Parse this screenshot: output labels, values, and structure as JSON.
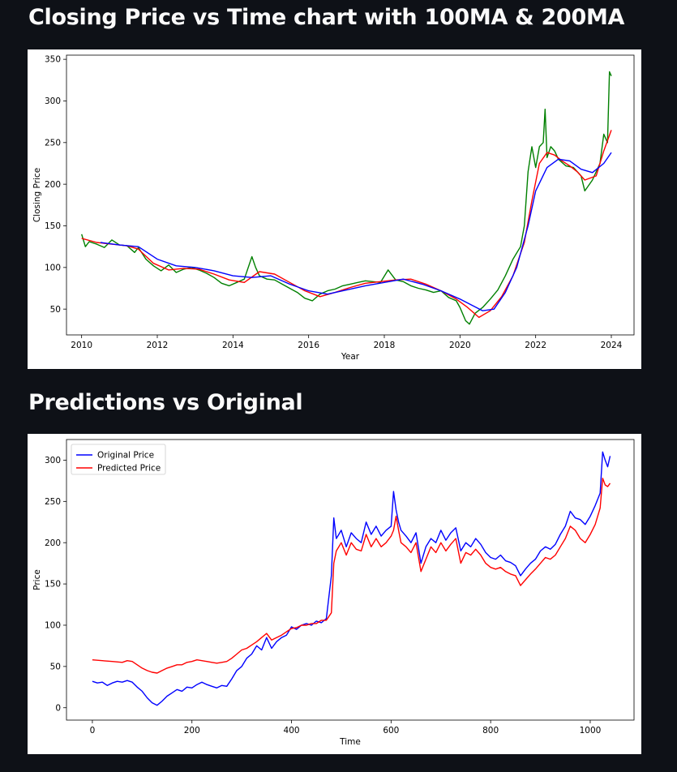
{
  "sections": [
    {
      "heading": "Closing Price vs Time chart with 100MA & 200MA"
    },
    {
      "heading": "Predictions vs Original"
    }
  ],
  "chart_data": [
    {
      "type": "line",
      "xlabel": "Year",
      "ylabel": "Closing Price",
      "xlim": [
        2009.6,
        2024.6
      ],
      "ylim": [
        19,
        355
      ],
      "xticks": [
        2010,
        2012,
        2014,
        2016,
        2018,
        2020,
        2022,
        2024
      ],
      "yticks": [
        50,
        100,
        150,
        200,
        250,
        300,
        350
      ],
      "grid": false,
      "series": [
        {
          "color": "#008000",
          "x": [
            2010.0,
            2010.1,
            2010.2,
            2010.4,
            2010.6,
            2010.8,
            2011.0,
            2011.2,
            2011.4,
            2011.5,
            2011.7,
            2011.9,
            2012.1,
            2012.3,
            2012.5,
            2012.7,
            2012.9,
            2013.1,
            2013.3,
            2013.5,
            2013.7,
            2013.9,
            2014.1,
            2014.3,
            2014.5,
            2014.6,
            2014.7,
            2014.9,
            2015.1,
            2015.3,
            2015.5,
            2015.7,
            2015.9,
            2016.1,
            2016.3,
            2016.5,
            2016.7,
            2016.9,
            2017.1,
            2017.3,
            2017.5,
            2017.7,
            2017.9,
            2018.1,
            2018.3,
            2018.5,
            2018.7,
            2018.9,
            2019.1,
            2019.3,
            2019.5,
            2019.7,
            2019.9,
            2020.0,
            2020.15,
            2020.25,
            2020.4,
            2020.6,
            2020.8,
            2021.0,
            2021.2,
            2021.4,
            2021.6,
            2021.7,
            2021.8,
            2021.9,
            2022.0,
            2022.1,
            2022.2,
            2022.25,
            2022.3,
            2022.4,
            2022.5,
            2022.6,
            2022.8,
            2023.0,
            2023.2,
            2023.3,
            2023.5,
            2023.7,
            2023.8,
            2023.9,
            2023.95,
            2024.0
          ],
          "y": [
            140,
            125,
            131,
            128,
            124,
            133,
            127,
            126,
            118,
            124,
            110,
            102,
            96,
            103,
            94,
            98,
            100,
            97,
            93,
            88,
            81,
            78,
            82,
            86,
            113,
            100,
            90,
            86,
            85,
            80,
            75,
            70,
            63,
            60,
            68,
            72,
            74,
            78,
            80,
            82,
            84,
            83,
            82,
            97,
            85,
            83,
            78,
            75,
            73,
            70,
            72,
            64,
            60,
            52,
            36,
            32,
            45,
            52,
            62,
            73,
            90,
            110,
            125,
            150,
            215,
            245,
            220,
            245,
            250,
            290,
            232,
            245,
            240,
            230,
            222,
            220,
            210,
            192,
            205,
            225,
            260,
            250,
            335,
            330
          ]
        },
        {
          "color": "#ff0000",
          "x": [
            2010.0,
            2010.4,
            2010.8,
            2011.2,
            2011.5,
            2011.9,
            2012.3,
            2012.7,
            2013.1,
            2013.5,
            2013.9,
            2014.3,
            2014.7,
            2015.1,
            2015.5,
            2015.9,
            2016.3,
            2016.7,
            2017.1,
            2017.5,
            2017.9,
            2018.3,
            2018.7,
            2019.1,
            2019.5,
            2019.9,
            2020.2,
            2020.5,
            2020.8,
            2021.1,
            2021.4,
            2021.7,
            2021.9,
            2022.1,
            2022.3,
            2022.5,
            2022.7,
            2022.9,
            2023.1,
            2023.3,
            2023.6,
            2023.8,
            2024.0
          ],
          "y": [
            135,
            130,
            128,
            126,
            122,
            105,
            97,
            99,
            98,
            92,
            85,
            82,
            95,
            92,
            82,
            72,
            65,
            70,
            76,
            81,
            83,
            85,
            86,
            80,
            72,
            62,
            52,
            40,
            48,
            65,
            90,
            130,
            180,
            225,
            238,
            235,
            228,
            222,
            215,
            205,
            210,
            240,
            265
          ]
        },
        {
          "color": "#0000ff",
          "x": [
            2010.5,
            2011.0,
            2011.5,
            2012.0,
            2012.5,
            2013.0,
            2013.5,
            2014.0,
            2014.5,
            2015.0,
            2015.5,
            2016.0,
            2016.5,
            2017.0,
            2017.5,
            2018.0,
            2018.5,
            2019.0,
            2019.5,
            2020.0,
            2020.3,
            2020.6,
            2020.9,
            2021.2,
            2021.5,
            2021.8,
            2022.0,
            2022.3,
            2022.6,
            2022.9,
            2023.2,
            2023.5,
            2023.8,
            2024.0
          ],
          "y": [
            130,
            127,
            125,
            110,
            102,
            100,
            96,
            90,
            88,
            90,
            80,
            72,
            68,
            73,
            78,
            82,
            86,
            80,
            72,
            62,
            55,
            48,
            50,
            70,
            100,
            150,
            192,
            220,
            230,
            228,
            218,
            214,
            225,
            238
          ]
        }
      ]
    },
    {
      "type": "line",
      "xlabel": "Time",
      "ylabel": "Price",
      "xlim": [
        -52,
        1088
      ],
      "ylim": [
        -15,
        325
      ],
      "xticks": [
        0,
        200,
        400,
        600,
        800,
        1000
      ],
      "yticks": [
        0,
        50,
        100,
        150,
        200,
        250,
        300
      ],
      "legend": "top-left",
      "grid": false,
      "series": [
        {
          "name": "Original Price",
          "color": "#0000ff",
          "x": [
            0,
            10,
            20,
            30,
            40,
            50,
            60,
            70,
            80,
            90,
            100,
            110,
            120,
            130,
            140,
            150,
            160,
            170,
            180,
            190,
            200,
            210,
            220,
            230,
            240,
            250,
            260,
            270,
            280,
            290,
            300,
            310,
            320,
            330,
            340,
            350,
            360,
            370,
            380,
            390,
            400,
            410,
            420,
            430,
            440,
            450,
            460,
            470,
            480,
            485,
            490,
            495,
            500,
            510,
            520,
            530,
            540,
            550,
            560,
            570,
            580,
            590,
            600,
            605,
            610,
            615,
            620,
            630,
            640,
            650,
            660,
            670,
            680,
            690,
            700,
            710,
            720,
            730,
            740,
            750,
            760,
            770,
            780,
            790,
            800,
            810,
            820,
            830,
            840,
            850,
            860,
            870,
            880,
            890,
            900,
            910,
            920,
            930,
            940,
            950,
            960,
            970,
            980,
            990,
            1000,
            1010,
            1020,
            1025,
            1030,
            1035,
            1040
          ],
          "y": [
            32,
            30,
            31,
            27,
            30,
            32,
            31,
            33,
            31,
            25,
            20,
            12,
            6,
            3,
            8,
            14,
            18,
            22,
            20,
            25,
            24,
            28,
            31,
            28,
            26,
            24,
            27,
            26,
            35,
            45,
            50,
            60,
            65,
            75,
            70,
            85,
            72,
            80,
            85,
            88,
            98,
            95,
            100,
            102,
            100,
            105,
            103,
            108,
            160,
            230,
            205,
            210,
            215,
            195,
            212,
            205,
            200,
            225,
            210,
            220,
            208,
            215,
            220,
            262,
            240,
            225,
            215,
            208,
            200,
            212,
            175,
            195,
            205,
            200,
            215,
            203,
            212,
            218,
            190,
            200,
            195,
            205,
            198,
            188,
            182,
            180,
            185,
            178,
            176,
            172,
            160,
            168,
            175,
            180,
            190,
            195,
            192,
            198,
            210,
            220,
            238,
            230,
            228,
            222,
            232,
            245,
            260,
            310,
            300,
            292,
            305
          ]
        },
        {
          "name": "Predicted Price",
          "color": "#ff0000",
          "x": [
            0,
            20,
            40,
            60,
            70,
            80,
            90,
            100,
            110,
            120,
            130,
            140,
            150,
            160,
            170,
            180,
            190,
            200,
            210,
            220,
            230,
            240,
            250,
            260,
            270,
            280,
            290,
            300,
            310,
            320,
            330,
            340,
            350,
            360,
            370,
            380,
            390,
            400,
            410,
            420,
            430,
            440,
            450,
            460,
            470,
            480,
            485,
            490,
            495,
            500,
            510,
            520,
            530,
            540,
            550,
            560,
            570,
            580,
            590,
            600,
            605,
            610,
            615,
            620,
            630,
            640,
            650,
            660,
            670,
            680,
            690,
            700,
            710,
            720,
            730,
            740,
            750,
            760,
            770,
            780,
            790,
            800,
            810,
            820,
            830,
            840,
            850,
            860,
            870,
            880,
            890,
            900,
            910,
            920,
            930,
            940,
            950,
            960,
            970,
            980,
            990,
            1000,
            1010,
            1020,
            1025,
            1030,
            1035,
            1040
          ],
          "y": [
            58,
            57,
            56,
            55,
            57,
            56,
            52,
            48,
            45,
            43,
            42,
            45,
            48,
            50,
            52,
            52,
            55,
            56,
            58,
            57,
            56,
            55,
            54,
            55,
            56,
            60,
            65,
            70,
            72,
            76,
            80,
            85,
            90,
            82,
            85,
            88,
            92,
            96,
            97,
            100,
            100,
            102,
            102,
            106,
            106,
            115,
            175,
            190,
            195,
            200,
            185,
            200,
            192,
            190,
            210,
            195,
            205,
            195,
            200,
            208,
            215,
            232,
            215,
            200,
            195,
            188,
            200,
            165,
            180,
            195,
            188,
            200,
            190,
            198,
            205,
            175,
            188,
            185,
            192,
            185,
            175,
            170,
            168,
            170,
            165,
            162,
            160,
            148,
            155,
            162,
            168,
            175,
            182,
            180,
            185,
            195,
            205,
            220,
            215,
            205,
            200,
            210,
            222,
            242,
            278,
            270,
            268,
            272
          ]
        }
      ]
    }
  ]
}
